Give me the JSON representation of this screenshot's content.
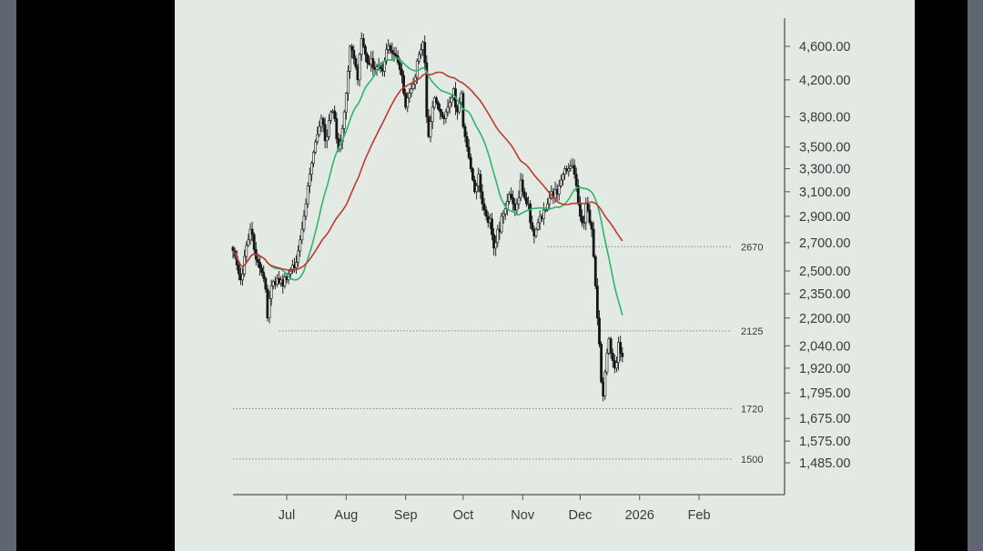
{
  "chart_data": {
    "type": "candlestick",
    "title": "",
    "x_ticks": [
      "Jul",
      "Aug",
      "Sep",
      "Oct",
      "Nov",
      "Dec",
      "2026",
      "Feb"
    ],
    "x_tick_dates": [
      "2025-07-01",
      "2025-08-01",
      "2025-09-01",
      "2025-10-01",
      "2025-11-01",
      "2025-12-01",
      "2026-01-01",
      "2026-02-01"
    ],
    "x_range": [
      "2025-06-03",
      "2026-02-19"
    ],
    "y_ticks": [
      "4,600.00",
      "4,200.00",
      "3,800.00",
      "3,500.00",
      "3,300.00",
      "3,100.00",
      "2,900.00",
      "2,700.00",
      "2,500.00",
      "2,350.00",
      "2,200.00",
      "2,040.00",
      "1,920.00",
      "1,795.00",
      "1,675.00",
      "1,575.00",
      "1,485.00"
    ],
    "y_tick_values": [
      4600,
      4200,
      3800,
      3500,
      3300,
      3100,
      2900,
      2700,
      2500,
      2350,
      2200,
      2040,
      1920,
      1795,
      1675,
      1575,
      1485
    ],
    "y_scale": "log",
    "y_range": [
      1360,
      5050
    ],
    "grid": false,
    "horizontal_levels": [
      {
        "label": "2670",
        "value": 2670,
        "start": "2025-11-14"
      },
      {
        "label": "2125",
        "value": 2125,
        "start": "2025-06-27"
      },
      {
        "label": "1720",
        "value": 1720,
        "start": "2025-06-03"
      },
      {
        "label": "1500",
        "value": 1500,
        "start": "2025-06-03"
      }
    ],
    "candles": {
      "start_date": "2025-06-03",
      "step_days": 1,
      "closes": [
        2640,
        2600,
        2540,
        2480,
        2440,
        2480,
        2600,
        2680,
        2720,
        2800,
        2760,
        2650,
        2580,
        2560,
        2520,
        2490,
        2450,
        2380,
        2200,
        2320,
        2400,
        2430,
        2410,
        2450,
        2420,
        2440,
        2400,
        2460,
        2440,
        2480,
        2500,
        2540,
        2520,
        2560,
        2640,
        2720,
        2800,
        2900,
        3000,
        3150,
        3250,
        3350,
        3450,
        3550,
        3620,
        3700,
        3780,
        3720,
        3560,
        3600,
        3760,
        3850,
        3860,
        3780,
        3580,
        3480,
        3550,
        3680,
        3850,
        4050,
        4300,
        4600,
        4550,
        4450,
        4350,
        4200,
        4500,
        4700,
        4600,
        4500,
        4400,
        4380,
        4450,
        4340,
        4320,
        4350,
        4370,
        4330,
        4300,
        4420,
        4560,
        4610,
        4550,
        4520,
        4500,
        4480,
        4400,
        4320,
        4250,
        4050,
        3900,
        4000,
        4050,
        4100,
        4150,
        4230,
        4420,
        4500,
        4560,
        4650,
        4400,
        3800,
        3600,
        3750,
        3900,
        4000,
        3950,
        3880,
        3850,
        3800,
        3780,
        3850,
        3900,
        3950,
        4000,
        4100,
        3900,
        3850,
        3950,
        4050,
        3700,
        3600,
        3500,
        3400,
        3300,
        3200,
        3100,
        3150,
        3250,
        3100,
        3000,
        2950,
        2900,
        2850,
        2880,
        2760,
        2660,
        2700,
        2800,
        2780,
        2900,
        2920,
        2960,
        3020,
        3080,
        3050,
        3000,
        2950,
        3000,
        3050,
        3200,
        3100,
        3050,
        3000,
        3000,
        2850,
        2800,
        2750,
        2800,
        2850,
        2900,
        2880,
        2950,
        2950,
        3000,
        3050,
        3100,
        3050,
        3120,
        3080,
        3150,
        3200,
        3250,
        3300,
        3280,
        3300,
        3320,
        3330,
        3250,
        3150,
        3000,
        2900,
        2850,
        2850,
        3000,
        2950,
        2850,
        2800,
        2600,
        2400,
        2200,
        2050,
        1850,
        1780,
        1900,
        2000,
        2080,
        2000,
        1960,
        1920,
        1950,
        2060,
        2000,
        1980
      ]
    },
    "moving_averages": [
      {
        "period": 20,
        "color": "#2fb66a"
      },
      {
        "period": 50,
        "color": "#bd3a30"
      }
    ],
    "colors": {
      "background": "#e3e9e3",
      "candle": "#151515",
      "axis": "#555555",
      "level_line": "#8a8a8a"
    }
  }
}
